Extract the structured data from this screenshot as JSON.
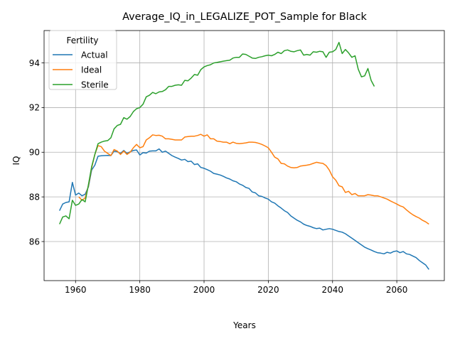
{
  "chart_data": {
    "type": "line",
    "title": "Average_IQ_in_LEGALIZE_POT_Sample for Black",
    "xlabel": "Years",
    "ylabel": "IQ",
    "xlim": [
      1950.2,
      2074.8
    ],
    "ylim": [
      84.25,
      95.45
    ],
    "xticks": [
      1960,
      1980,
      2000,
      2020,
      2040,
      2060
    ],
    "yticks": [
      86,
      88,
      90,
      92,
      94
    ],
    "grid": true,
    "legend": {
      "title": "Fertility",
      "placement": "top-left"
    },
    "series": [
      {
        "name": "Actual",
        "color": "#1f77b4",
        "x": [
          1955,
          1956,
          1957,
          1958,
          1959,
          1960,
          1961,
          1962,
          1963,
          1964,
          1965,
          1966,
          1967,
          1968,
          1969,
          1970,
          1971,
          1972,
          1973,
          1974,
          1975,
          1976,
          1977,
          1978,
          1979,
          1980,
          1981,
          1982,
          1983,
          1984,
          1985,
          1986,
          1987,
          1988,
          1989,
          1990,
          1991,
          1992,
          1993,
          1994,
          1995,
          1996,
          1997,
          1998,
          1999,
          2000,
          2001,
          2002,
          2003,
          2004,
          2005,
          2006,
          2007,
          2008,
          2009,
          2010,
          2011,
          2012,
          2013,
          2014,
          2015,
          2016,
          2017,
          2018,
          2019,
          2020,
          2021,
          2022,
          2023,
          2024,
          2025,
          2026,
          2027,
          2028,
          2029,
          2030,
          2031,
          2032,
          2033,
          2034,
          2035,
          2036,
          2037,
          2038,
          2039,
          2040,
          2041,
          2042,
          2043,
          2044,
          2045,
          2046,
          2047,
          2048,
          2049,
          2050,
          2051,
          2052,
          2053,
          2054,
          2055,
          2056,
          2057,
          2058,
          2059,
          2060,
          2061,
          2062,
          2063,
          2064,
          2065,
          2066,
          2067,
          2068,
          2069,
          2070
        ],
        "y": [
          87.38,
          87.68,
          87.75,
          87.78,
          88.65,
          88.08,
          88.17,
          88.05,
          88.12,
          88.45,
          89.2,
          89.42,
          89.82,
          89.84,
          89.85,
          89.86,
          89.85,
          90.05,
          90.02,
          89.95,
          90.08,
          89.95,
          90.02,
          90.08,
          90.1,
          89.88,
          89.98,
          89.96,
          90.05,
          90.06,
          90.06,
          90.15,
          90.0,
          90.05,
          89.95,
          89.85,
          89.78,
          89.72,
          89.65,
          89.68,
          89.58,
          89.6,
          89.45,
          89.48,
          89.32,
          89.28,
          89.22,
          89.15,
          89.05,
          89.02,
          88.98,
          88.92,
          88.85,
          88.8,
          88.72,
          88.68,
          88.58,
          88.52,
          88.42,
          88.38,
          88.22,
          88.18,
          88.05,
          88.02,
          87.95,
          87.9,
          87.78,
          87.72,
          87.6,
          87.5,
          87.38,
          87.3,
          87.15,
          87.05,
          86.95,
          86.88,
          86.78,
          86.72,
          86.68,
          86.62,
          86.58,
          86.6,
          86.52,
          86.55,
          86.58,
          86.55,
          86.5,
          86.45,
          86.42,
          86.35,
          86.25,
          86.15,
          86.05,
          85.95,
          85.85,
          85.75,
          85.68,
          85.62,
          85.55,
          85.5,
          85.48,
          85.45,
          85.52,
          85.48,
          85.55,
          85.58,
          85.5,
          85.55,
          85.45,
          85.42,
          85.35,
          85.28,
          85.15,
          85.05,
          84.95,
          84.75
        ]
      },
      {
        "name": "Ideal",
        "color": "#ff7f0e",
        "x": [
          1961,
          1962,
          1963,
          1964,
          1965,
          1966,
          1967,
          1968,
          1969,
          1970,
          1971,
          1972,
          1973,
          1974,
          1975,
          1976,
          1977,
          1978,
          1979,
          1980,
          1981,
          1982,
          1983,
          1984,
          1985,
          1986,
          1987,
          1988,
          1989,
          1990,
          1991,
          1992,
          1993,
          1994,
          1995,
          1996,
          1997,
          1998,
          1999,
          2000,
          2001,
          2002,
          2003,
          2004,
          2005,
          2006,
          2007,
          2008,
          2009,
          2010,
          2011,
          2012,
          2013,
          2014,
          2015,
          2016,
          2017,
          2018,
          2019,
          2020,
          2021,
          2022,
          2023,
          2024,
          2025,
          2026,
          2027,
          2028,
          2029,
          2030,
          2031,
          2032,
          2033,
          2034,
          2035,
          2036,
          2037,
          2038,
          2039,
          2040,
          2041,
          2042,
          2043,
          2044,
          2045,
          2046,
          2047,
          2048,
          2049,
          2050,
          2051,
          2052,
          2053,
          2054,
          2055,
          2056,
          2057,
          2058,
          2059,
          2060,
          2061,
          2062,
          2063,
          2064,
          2065,
          2066,
          2067,
          2068,
          2069,
          2070
        ],
        "y": [
          88.0,
          87.85,
          87.95,
          88.5,
          89.3,
          89.9,
          90.3,
          90.25,
          90.05,
          89.95,
          89.85,
          90.12,
          90.05,
          89.9,
          90.05,
          89.9,
          90.0,
          90.2,
          90.35,
          90.2,
          90.25,
          90.55,
          90.65,
          90.78,
          90.75,
          90.76,
          90.72,
          90.6,
          90.6,
          90.58,
          90.55,
          90.55,
          90.55,
          90.68,
          90.7,
          90.72,
          90.72,
          90.75,
          90.8,
          90.72,
          90.78,
          90.6,
          90.6,
          90.5,
          90.48,
          90.45,
          90.45,
          90.38,
          90.45,
          90.4,
          90.38,
          90.4,
          90.42,
          90.45,
          90.45,
          90.44,
          90.4,
          90.35,
          90.28,
          90.2,
          90.0,
          89.78,
          89.7,
          89.5,
          89.48,
          89.38,
          89.32,
          89.3,
          89.32,
          89.38,
          89.4,
          89.42,
          89.45,
          89.5,
          89.55,
          89.52,
          89.5,
          89.4,
          89.2,
          88.9,
          88.75,
          88.5,
          88.45,
          88.2,
          88.25,
          88.1,
          88.15,
          88.05,
          88.05,
          88.05,
          88.1,
          88.08,
          88.05,
          88.05,
          88.0,
          87.95,
          87.9,
          87.82,
          87.75,
          87.68,
          87.6,
          87.55,
          87.42,
          87.3,
          87.2,
          87.12,
          87.05,
          86.95,
          86.88,
          86.78
        ]
      },
      {
        "name": "Sterile",
        "color": "#2ca02c",
        "x": [
          1955,
          1956,
          1957,
          1958,
          1959,
          1960,
          1961,
          1962,
          1963,
          1964,
          1965,
          1966,
          1967,
          1968,
          1969,
          1970,
          1971,
          1972,
          1973,
          1974,
          1975,
          1976,
          1977,
          1978,
          1979,
          1980,
          1981,
          1982,
          1983,
          1984,
          1985,
          1986,
          1987,
          1988,
          1989,
          1990,
          1991,
          1992,
          1993,
          1994,
          1995,
          1996,
          1997,
          1998,
          1999,
          2000,
          2001,
          2002,
          2003,
          2004,
          2005,
          2006,
          2007,
          2008,
          2009,
          2010,
          2011,
          2012,
          2013,
          2014,
          2015,
          2016,
          2017,
          2018,
          2019,
          2020,
          2021,
          2022,
          2023,
          2024,
          2025,
          2026,
          2027,
          2028,
          2029,
          2030,
          2031,
          2032,
          2033,
          2034,
          2035,
          2036,
          2037,
          2038,
          2039,
          2040,
          2041,
          2042,
          2043,
          2044,
          2045,
          2046,
          2047,
          2048,
          2049,
          2050,
          2051,
          2052,
          2053
        ],
        "y": [
          86.78,
          87.1,
          87.15,
          87.02,
          87.85,
          87.62,
          87.68,
          87.88,
          87.78,
          88.55,
          89.35,
          89.9,
          90.38,
          90.45,
          90.5,
          90.52,
          90.65,
          91.05,
          91.2,
          91.25,
          91.55,
          91.48,
          91.6,
          91.82,
          91.95,
          92.0,
          92.15,
          92.48,
          92.55,
          92.68,
          92.62,
          92.7,
          92.72,
          92.8,
          92.95,
          92.95,
          93.0,
          93.02,
          93.0,
          93.22,
          93.2,
          93.32,
          93.48,
          93.45,
          93.7,
          93.82,
          93.88,
          93.92,
          94.0,
          94.02,
          94.05,
          94.08,
          94.1,
          94.12,
          94.22,
          94.25,
          94.25,
          94.4,
          94.38,
          94.3,
          94.22,
          94.2,
          94.25,
          94.28,
          94.32,
          94.35,
          94.32,
          94.38,
          94.48,
          94.42,
          94.55,
          94.58,
          94.52,
          94.5,
          94.55,
          94.58,
          94.35,
          94.38,
          94.35,
          94.5,
          94.48,
          94.52,
          94.5,
          94.25,
          94.48,
          94.5,
          94.6,
          94.92,
          94.42,
          94.6,
          94.45,
          94.25,
          94.32,
          93.72,
          93.38,
          93.42,
          93.75,
          93.22,
          92.95
        ]
      }
    ]
  }
}
